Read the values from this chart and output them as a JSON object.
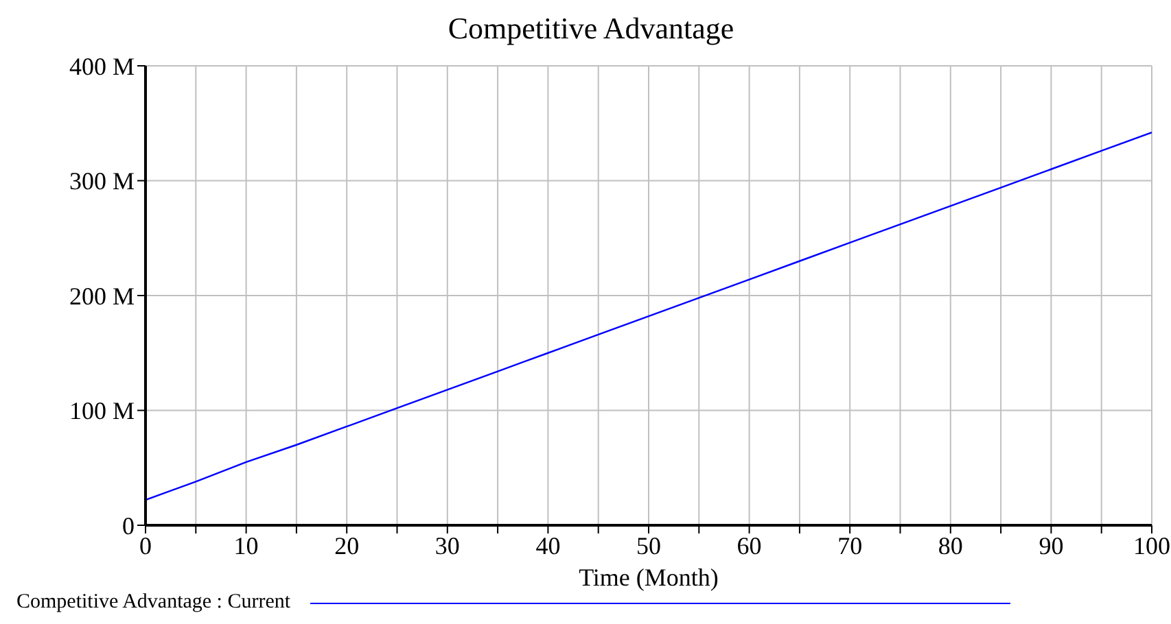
{
  "chart_data": {
    "type": "line",
    "title": "Competitive Advantage",
    "xlabel": "Time (Month)",
    "x": [
      0,
      5,
      10,
      15,
      20,
      25,
      30,
      35,
      40,
      45,
      50,
      55,
      60,
      65,
      70,
      75,
      80,
      85,
      90,
      95,
      100
    ],
    "series": [
      {
        "name": "Competitive Advantage : Current",
        "color": "#0000ff",
        "values": [
          22,
          38,
          55,
          70,
          86,
          102,
          118,
          134,
          150,
          166,
          182,
          198,
          214,
          230,
          246,
          262,
          278,
          294,
          310,
          326,
          342
        ]
      }
    ],
    "xlim": [
      0,
      100
    ],
    "xticks": [
      0,
      {
        "value": 5,
        "label": null
      },
      10,
      {
        "value": 15,
        "label": null
      },
      20,
      {
        "value": 25,
        "label": null
      },
      30,
      {
        "value": 35,
        "label": null
      },
      40,
      {
        "value": 45,
        "label": null
      },
      50,
      {
        "value": 55,
        "label": null
      },
      60,
      {
        "value": 65,
        "label": null
      },
      70,
      {
        "value": 75,
        "label": null
      },
      80,
      {
        "value": 85,
        "label": null
      },
      90,
      {
        "value": 95,
        "label": null
      },
      100
    ],
    "ylim": [
      0,
      400
    ],
    "yticks": [
      0,
      {
        "value": 100,
        "label": "100 M"
      },
      {
        "value": 200,
        "label": "200 M"
      },
      {
        "value": 300,
        "label": "300 M"
      },
      {
        "value": 400,
        "label": "400 M"
      }
    ],
    "grid": true,
    "legend": "bottom",
    "marker": "none",
    "line_style": "solid"
  }
}
